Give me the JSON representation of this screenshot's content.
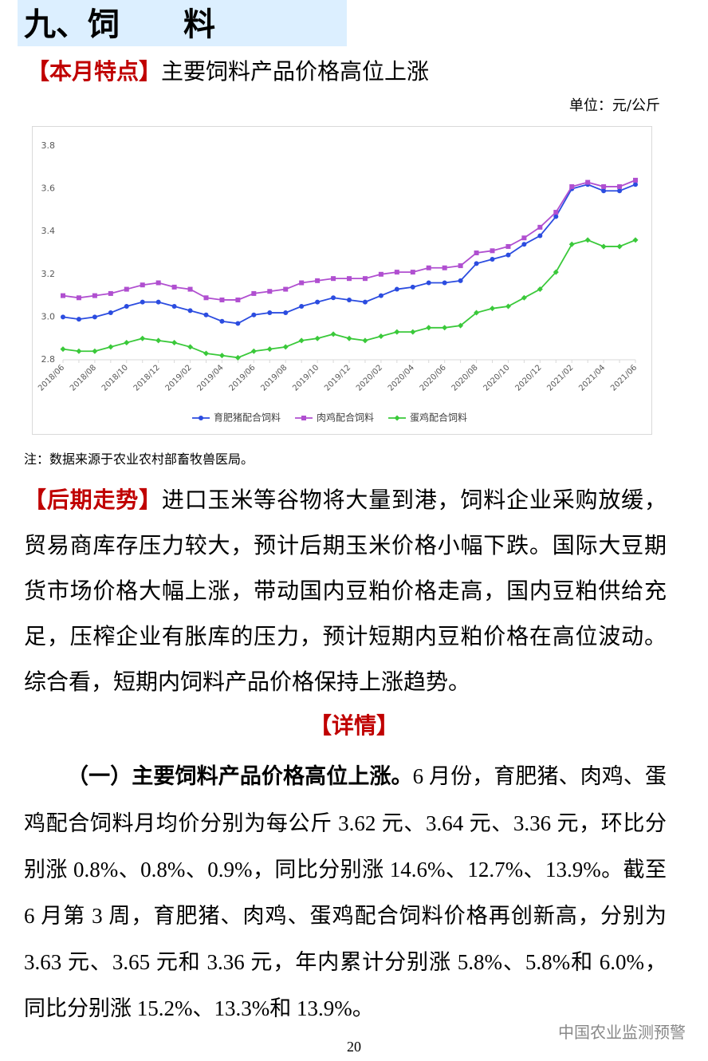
{
  "heading": "九、饲　　料",
  "feature": {
    "label": "【本月特点】",
    "text": "主要饲料产品价格高位上涨"
  },
  "unit": "单位：元/公斤",
  "chart_data": {
    "type": "line",
    "categories": [
      "2018/06",
      null,
      "2018/08",
      null,
      "2018/10",
      null,
      "2018/12",
      null,
      "2019/02",
      null,
      "2019/04",
      null,
      "2019/06",
      null,
      "2019/08",
      null,
      "2019/10",
      null,
      "2019/12",
      null,
      "2020/02",
      null,
      "2020/04",
      null,
      "2020/06",
      null,
      "2020/08",
      null,
      "2020/10",
      null,
      "2020/12",
      null,
      "2021/02",
      null,
      "2021/04",
      null,
      "2021/06"
    ],
    "series": [
      {
        "name": "育肥猪配合饲料",
        "color": "#2b4ce0",
        "marker": "circle",
        "values": [
          3.0,
          2.99,
          3.0,
          3.02,
          3.05,
          3.07,
          3.07,
          3.05,
          3.03,
          3.01,
          2.98,
          2.97,
          3.01,
          3.02,
          3.02,
          3.05,
          3.07,
          3.09,
          3.08,
          3.07,
          3.1,
          3.13,
          3.14,
          3.16,
          3.16,
          3.17,
          3.25,
          3.27,
          3.29,
          3.34,
          3.38,
          3.47,
          3.6,
          3.62,
          3.59,
          3.59,
          3.62
        ]
      },
      {
        "name": "肉鸡配合饲料",
        "color": "#b04fd0",
        "marker": "square",
        "values": [
          3.1,
          3.09,
          3.1,
          3.11,
          3.13,
          3.15,
          3.16,
          3.14,
          3.13,
          3.09,
          3.08,
          3.08,
          3.11,
          3.12,
          3.13,
          3.16,
          3.17,
          3.18,
          3.18,
          3.18,
          3.2,
          3.21,
          3.21,
          3.23,
          3.23,
          3.24,
          3.3,
          3.31,
          3.33,
          3.37,
          3.42,
          3.49,
          3.61,
          3.63,
          3.61,
          3.61,
          3.64
        ]
      },
      {
        "name": "蛋鸡配合饲料",
        "color": "#3ac93a",
        "marker": "diamond",
        "values": [
          2.85,
          2.84,
          2.84,
          2.86,
          2.88,
          2.9,
          2.89,
          2.88,
          2.86,
          2.83,
          2.82,
          2.81,
          2.84,
          2.85,
          2.86,
          2.89,
          2.9,
          2.92,
          2.9,
          2.89,
          2.91,
          2.93,
          2.93,
          2.95,
          2.95,
          2.96,
          3.02,
          3.04,
          3.05,
          3.09,
          3.13,
          3.21,
          3.34,
          3.36,
          3.33,
          3.33,
          3.36
        ]
      }
    ],
    "ylim": [
      2.8,
      3.8
    ],
    "yticks": [
      2.8,
      {
        "value": 3,
        "label": "3.0"
      },
      3.2,
      3.4,
      3.6,
      3.8
    ],
    "grid": false,
    "legend": "bottom"
  },
  "note": "注：数据来源于农业农村部畜牧兽医局。",
  "outlook": {
    "label": "【后期走势】",
    "text": "进口玉米等谷物将大量到港，饲料企业采购放缓，贸易商库存压力较大，预计后期玉米价格小幅下跌。国际大豆期货市场价格大幅上涨，带动国内豆粕价格走高，国内豆粕供给充足，压榨企业有胀库的压力，预计短期内豆粕价格在高位波动。综合看，短期内饲料产品价格保持上涨趋势。"
  },
  "details": {
    "title": "【详情】",
    "lead": "（一）主要饲料产品价格高位上涨。",
    "text": "6 月份，育肥猪、肉鸡、蛋鸡配合饲料月均价分别为每公斤 3.62 元、3.64 元、3.36 元，环比分别涨 0.8%、0.8%、0.9%，同比分别涨 14.6%、12.7%、13.9%。截至 6 月第 3 周，育肥猪、肉鸡、蛋鸡配合饲料价格再创新高，分别为 3.63 元、3.65 元和 3.36 元，年内累计分别涨 5.8%、5.8%和 6.0%，同比分别涨 15.2%、13.3%和 13.9%。"
  },
  "page_number": "20",
  "watermark": "中国农业监测预警"
}
